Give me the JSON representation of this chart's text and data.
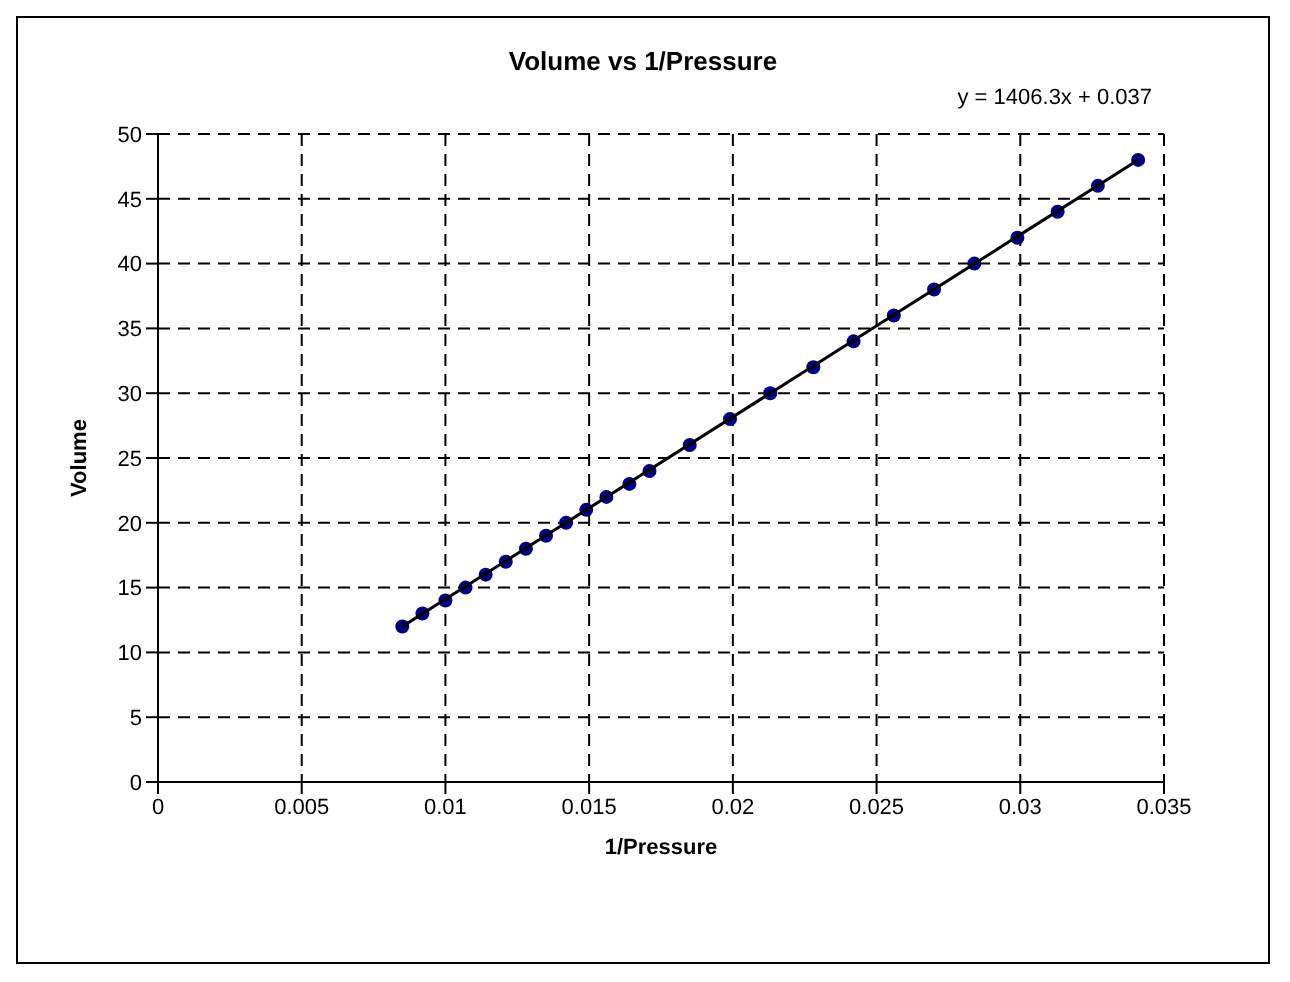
{
  "chart_data": {
    "type": "scatter",
    "title": "Volume vs 1/Pressure",
    "xlabel": "1/Pressure",
    "ylabel": "Volume",
    "xlim": [
      0,
      0.035
    ],
    "xticks": [
      0,
      0.005,
      0.01,
      0.015,
      0.02,
      0.025,
      0.03,
      0.035
    ],
    "ylim": [
      0,
      50
    ],
    "yticks": [
      0,
      5,
      10,
      15,
      20,
      25,
      30,
      35,
      40,
      45,
      50
    ],
    "grid": true,
    "marker": "circle",
    "annotations": [
      "y = 1406.3x + 0.037"
    ],
    "series": [
      {
        "color": "#000080",
        "x": [
          0.0085,
          0.0092,
          0.01,
          0.0107,
          0.0114,
          0.0121,
          0.0128,
          0.0135,
          0.0142,
          0.0149,
          0.0156,
          0.0164,
          0.0171,
          0.0185,
          0.0199,
          0.0213,
          0.0228,
          0.0242,
          0.0256,
          0.027,
          0.0284,
          0.0299,
          0.0313,
          0.0327,
          0.0341
        ],
        "values": [
          12,
          13,
          14,
          15,
          16,
          17,
          18,
          19,
          20,
          21,
          22,
          23,
          24,
          26,
          28,
          30,
          32,
          34,
          36,
          38,
          40,
          42,
          44,
          46,
          48
        ]
      },
      {
        "type": "line",
        "color": "#000000",
        "line_style": "solid",
        "marker": "none",
        "x": [
          0.0085,
          0.0341
        ],
        "values": [
          12,
          48
        ]
      }
    ]
  }
}
